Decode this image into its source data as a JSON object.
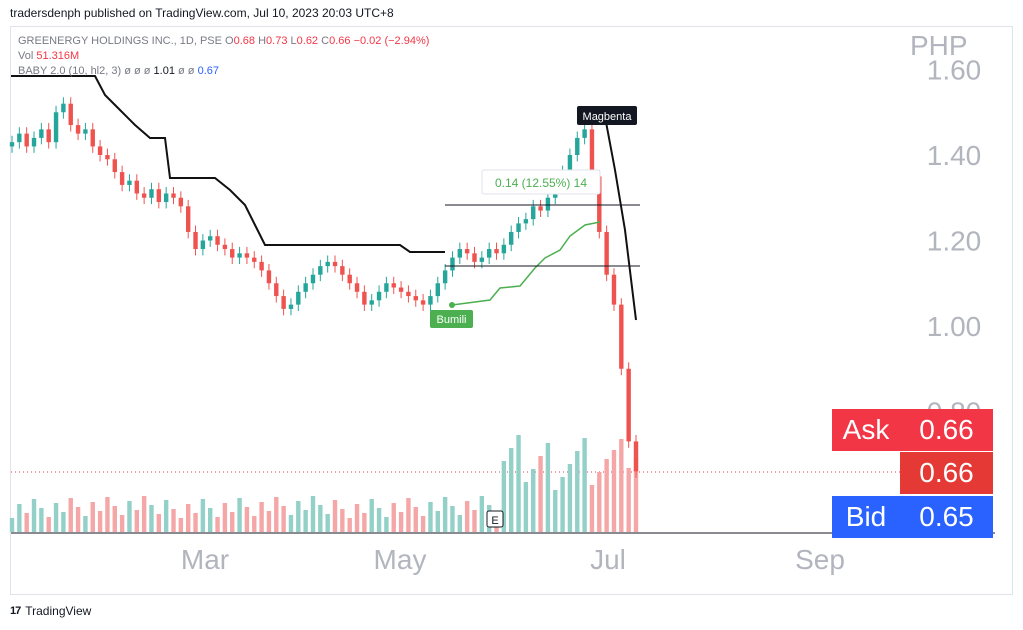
{
  "publisher_line": "tradersdenph published on TradingView.com, Jul 10, 2023 20:03 UTC+8",
  "legend": {
    "symbol": "GREENERGY HOLDINGS INC., 1D, PSE",
    "open_label": "O",
    "open": "0.68",
    "high_label": "H",
    "high": "0.73",
    "low_label": "L",
    "low": "0.62",
    "close_label": "C",
    "close": "0.66",
    "change": "−0.02 (−2.94%)",
    "vol_label": "Vol",
    "vol": "51.316M",
    "indicator": "BABY 2.0 (10, hl2, 3)",
    "indicator_empty": "ø ø ø",
    "ind_val1": "1.01",
    "ind_empty2": "ø ø",
    "ind_val2": "0.67"
  },
  "currency": "PHP",
  "quote": {
    "ask_label": "Ask",
    "ask": "0.66",
    "last": "0.66",
    "bid_label": "Bid",
    "bid": "0.65"
  },
  "footer": {
    "brand": "TradingView",
    "logo": "17"
  },
  "colors": {
    "up": "#26a69a",
    "down": "#ef5350",
    "vol_up": "#93d0c8",
    "vol_down": "#f5a7a7",
    "trail": "#111111",
    "support": "#4caf50",
    "ask_bg": "#f23645",
    "bid_bg": "#2962ff",
    "grid_text": "#b2b5be"
  },
  "chart_data": {
    "type": "candlestick",
    "currency": "PHP",
    "x_tick_labels": [
      "Mar",
      "May",
      "Jul",
      "Sep"
    ],
    "y_tick_labels": [
      "1.00",
      "1.20",
      "1.40",
      "1.60",
      "0.80"
    ],
    "ylim": [
      0.8,
      1.6
    ],
    "annotations": {
      "peak_label": "Magbenta",
      "support_label": "Bumili",
      "measure_label": "0.14 (12.55%) 14",
      "earnings_marker": "E"
    },
    "ohlc_description": "Daily candles Feb–Jul 2023; price declines from ~1.45 to ~1.02, rallies to ~1.46 in late June, then collapses to 0.66.",
    "close_series": [
      1.43,
      1.45,
      1.42,
      1.44,
      1.46,
      1.43,
      1.5,
      1.52,
      1.47,
      1.45,
      1.46,
      1.42,
      1.4,
      1.39,
      1.36,
      1.33,
      1.34,
      1.31,
      1.3,
      1.32,
      1.29,
      1.31,
      1.3,
      1.28,
      1.22,
      1.18,
      1.2,
      1.21,
      1.19,
      1.18,
      1.16,
      1.17,
      1.16,
      1.15,
      1.13,
      1.1,
      1.07,
      1.04,
      1.05,
      1.08,
      1.1,
      1.12,
      1.14,
      1.15,
      1.14,
      1.12,
      1.1,
      1.08,
      1.05,
      1.06,
      1.08,
      1.1,
      1.09,
      1.08,
      1.07,
      1.06,
      1.05,
      1.07,
      1.1,
      1.13,
      1.16,
      1.18,
      1.17,
      1.15,
      1.16,
      1.18,
      1.17,
      1.19,
      1.22,
      1.24,
      1.25,
      1.28,
      1.27,
      1.3,
      1.33,
      1.36,
      1.4,
      1.44,
      1.46,
      1.35,
      1.22,
      1.12,
      1.05,
      0.9,
      0.73,
      0.66
    ]
  }
}
